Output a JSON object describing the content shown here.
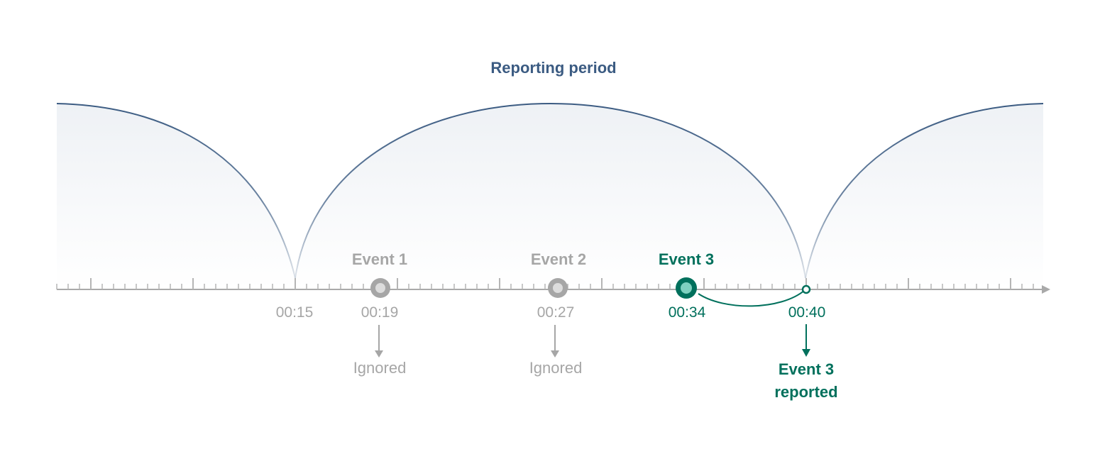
{
  "title": "Reporting period",
  "colors": {
    "period": "#3b5b82",
    "axis": "#a9a9a9",
    "ignored": "#a6a6a6",
    "reported": "#00705c",
    "reported_fill": "#7fd1c0",
    "tick_label": "#a6a6a6"
  },
  "period_boundaries": [
    "00:15",
    "00:40"
  ],
  "events": [
    {
      "label": "Event 1",
      "time": "00:19",
      "status": "ignored",
      "outcome": "Ignored"
    },
    {
      "label": "Event 2",
      "time": "00:27",
      "status": "ignored",
      "outcome": "Ignored"
    },
    {
      "label": "Event 3",
      "time": "00:34",
      "status": "reported"
    }
  ],
  "boundary_labels": [
    "00:15",
    "00:40"
  ],
  "report": {
    "time": "00:40",
    "line1": "Event 3",
    "line2": "reported"
  }
}
